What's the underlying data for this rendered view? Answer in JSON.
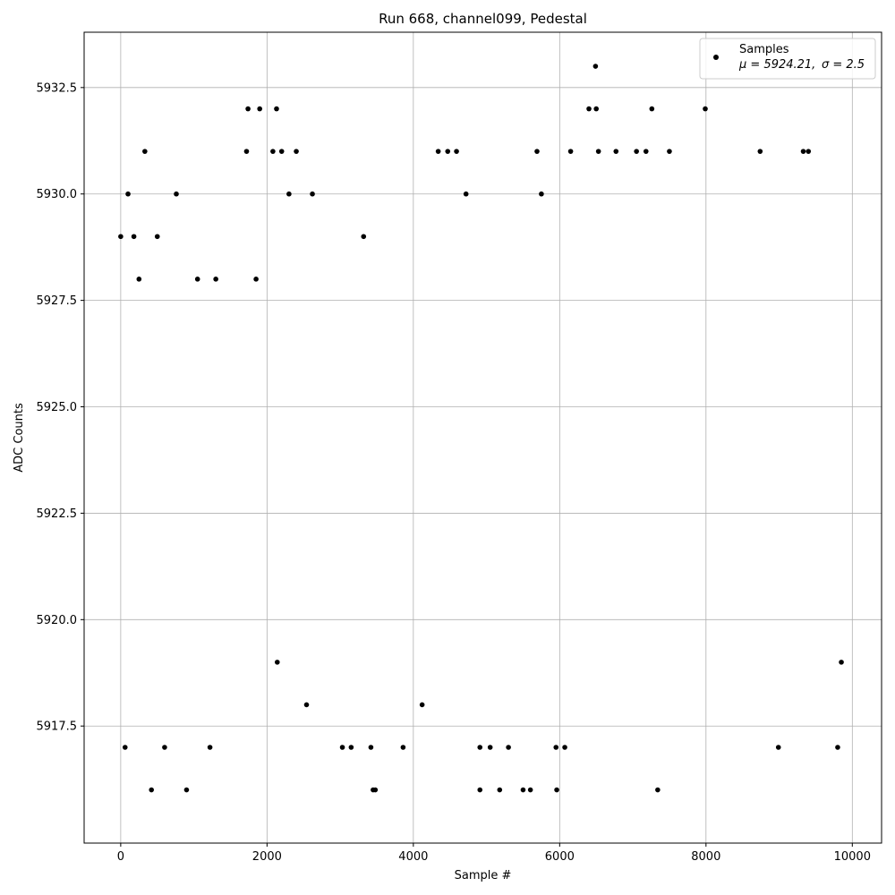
{
  "chart_data": {
    "type": "scatter",
    "title": "Run 668, channel099, Pedestal",
    "xlabel": "Sample #",
    "ylabel": "ADC Counts",
    "xlim": [
      -500,
      10400
    ],
    "ylim": [
      5914.75,
      5933.8
    ],
    "xticks": [
      0,
      2000,
      4000,
      6000,
      8000,
      10000
    ],
    "xtick_labels": [
      "0",
      "2000",
      "4000",
      "6000",
      "8000",
      "10000"
    ],
    "yticks": [
      5917.5,
      5920.0,
      5922.5,
      5925.0,
      5927.5,
      5930.0,
      5932.5
    ],
    "ytick_labels": [
      "5917.5",
      "5920.0",
      "5922.5",
      "5925.0",
      "5927.5",
      "5930.0",
      "5932.5"
    ],
    "grid": true,
    "legend": {
      "position": "top-right",
      "label": "Samples",
      "mu_label": "μ = 5924.21,",
      "sigma_label": "σ = 2.5"
    },
    "marker_color": "#000000",
    "series": [
      {
        "name": "Samples",
        "points": [
          [
            0,
            5929
          ],
          [
            60,
            5917
          ],
          [
            100,
            5930
          ],
          [
            180,
            5929
          ],
          [
            250,
            5928
          ],
          [
            330,
            5931
          ],
          [
            420,
            5916
          ],
          [
            500,
            5929
          ],
          [
            600,
            5917
          ],
          [
            760,
            5930
          ],
          [
            900,
            5916
          ],
          [
            1050,
            5928
          ],
          [
            1220,
            5917
          ],
          [
            1300,
            5928
          ],
          [
            1720,
            5931
          ],
          [
            1740,
            5932
          ],
          [
            1850,
            5928
          ],
          [
            1900,
            5932
          ],
          [
            2080,
            5931
          ],
          [
            2130,
            5932
          ],
          [
            2140,
            5919
          ],
          [
            2200,
            5931
          ],
          [
            2300,
            5930
          ],
          [
            2400,
            5931
          ],
          [
            2540,
            5918
          ],
          [
            2620,
            5930
          ],
          [
            3030,
            5917
          ],
          [
            3150,
            5917
          ],
          [
            3320,
            5929
          ],
          [
            3420,
            5917
          ],
          [
            3450,
            5916
          ],
          [
            3480,
            5916
          ],
          [
            3860,
            5917
          ],
          [
            4120,
            5918
          ],
          [
            4340,
            5931
          ],
          [
            4470,
            5931
          ],
          [
            4590,
            5931
          ],
          [
            4720,
            5930
          ],
          [
            4910,
            5917
          ],
          [
            4910,
            5916
          ],
          [
            5050,
            5917
          ],
          [
            5180,
            5916
          ],
          [
            5300,
            5917
          ],
          [
            5500,
            5916
          ],
          [
            5600,
            5916
          ],
          [
            5690,
            5931
          ],
          [
            5750,
            5930
          ],
          [
            5950,
            5917
          ],
          [
            5960,
            5916
          ],
          [
            6070,
            5917
          ],
          [
            6150,
            5931
          ],
          [
            6400,
            5932
          ],
          [
            6490,
            5933
          ],
          [
            6500,
            5932
          ],
          [
            6530,
            5931
          ],
          [
            6770,
            5931
          ],
          [
            7050,
            5931
          ],
          [
            7180,
            5931
          ],
          [
            7260,
            5932
          ],
          [
            7340,
            5916
          ],
          [
            7500,
            5931
          ],
          [
            7990,
            5932
          ],
          [
            8740,
            5931
          ],
          [
            8990,
            5917
          ],
          [
            9330,
            5931
          ],
          [
            9400,
            5931
          ],
          [
            9800,
            5917
          ],
          [
            9850,
            5919
          ]
        ]
      }
    ]
  }
}
